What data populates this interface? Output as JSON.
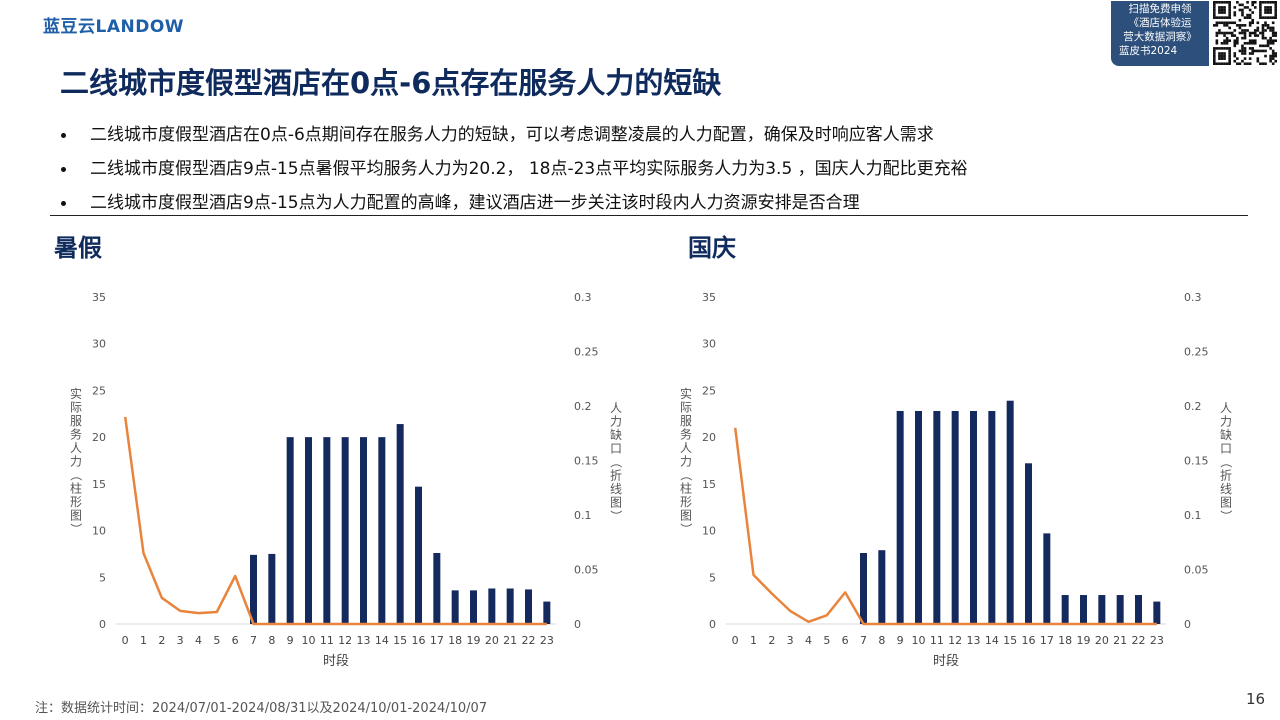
{
  "header": {
    "logo": "蓝豆云LANDOW",
    "promo_lines": [
      "扫描免费申领",
      "《酒店体验运",
      "营大数据洞察》",
      "蓝皮书2024"
    ],
    "qr_icon": "qr-code-icon"
  },
  "title": "二线城市度假型酒店在0点-6点存在服务人力的短缺",
  "bullets": [
    "二线城市度假型酒店在0点-6点期间存在服务人力的短缺，可以考虑调整凌晨的人力配置，确保及时响应客人需求",
    "二线城市度假型酒店9点-15点暑假平均服务人力为20.2， 18点-23点平均实际服务人力为3.5 ，国庆人力配比更充裕",
    "二线城市度假型酒店9点-15点为人力配置的高峰，建议酒店进一步关注该时段内人力资源安排是否合理"
  ],
  "colors": {
    "bar": "#14295e",
    "line": "#e8843c",
    "title": "#0f2a5c"
  },
  "chart_data": [
    {
      "type": "bar",
      "title": "暑假",
      "xlabel": "时段",
      "ylabel": "实际服务人力（柱形图）",
      "y2label": "人力缺口（折线图）",
      "categories": [
        "0",
        "1",
        "2",
        "3",
        "4",
        "5",
        "6",
        "7",
        "8",
        "9",
        "10",
        "11",
        "12",
        "13",
        "14",
        "15",
        "16",
        "17",
        "18",
        "19",
        "20",
        "21",
        "22",
        "23"
      ],
      "ylim": [
        0,
        35
      ],
      "yticks": [
        "0",
        "5",
        "10",
        "15",
        "20",
        "25",
        "30",
        "35"
      ],
      "y2lim": [
        0,
        0.3
      ],
      "y2ticks": [
        "0",
        "0.05",
        "0.1",
        "0.15",
        "0.2",
        "0.25",
        "0.3"
      ],
      "series": [
        {
          "values": [
            0,
            0,
            0,
            0,
            0,
            0,
            0,
            7.4,
            7.5,
            20,
            20,
            20,
            20,
            20,
            20,
            21.4,
            14.7,
            7.6,
            3.6,
            3.6,
            3.8,
            3.8,
            3.7,
            2.4
          ]
        },
        {
          "axis": "right",
          "values": [
            0.19,
            0.065,
            0.024,
            0.012,
            0.01,
            0.011,
            0.044,
            0,
            0,
            0,
            0,
            0,
            0,
            0,
            0,
            0,
            0,
            0,
            0,
            0,
            0,
            0,
            0,
            0
          ]
        }
      ]
    },
    {
      "type": "bar",
      "title": "国庆",
      "xlabel": "时段",
      "ylabel": "实际服务人力（柱形图）",
      "y2label": "人力缺口（折线图）",
      "categories": [
        "0",
        "1",
        "2",
        "3",
        "4",
        "5",
        "6",
        "7",
        "8",
        "9",
        "10",
        "11",
        "12",
        "13",
        "14",
        "15",
        "16",
        "17",
        "18",
        "19",
        "20",
        "21",
        "22",
        "23"
      ],
      "ylim": [
        0,
        35
      ],
      "yticks": [
        "0",
        "5",
        "10",
        "15",
        "20",
        "25",
        "30",
        "35"
      ],
      "y2lim": [
        0,
        0.3
      ],
      "y2ticks": [
        "0",
        "0.05",
        "0.1",
        "0.15",
        "0.2",
        "0.25",
        "0.3"
      ],
      "series": [
        {
          "values": [
            0,
            0,
            0,
            0,
            0,
            0,
            0,
            7.6,
            7.9,
            22.8,
            22.8,
            22.8,
            22.8,
            22.8,
            22.8,
            23.9,
            17.2,
            9.7,
            3.1,
            3.1,
            3.1,
            3.1,
            3.1,
            2.4
          ]
        },
        {
          "axis": "right",
          "values": [
            0.18,
            0.045,
            0.028,
            0.012,
            0.002,
            0.008,
            0.029,
            0,
            0,
            0,
            0,
            0,
            0,
            0,
            0,
            0,
            0,
            0,
            0,
            0,
            0,
            0,
            0,
            0
          ]
        }
      ]
    }
  ],
  "footnote": "注：数据统计时间：2024/07/01-2024/08/31以及2024/10/01-2024/10/07",
  "page_number": "16"
}
